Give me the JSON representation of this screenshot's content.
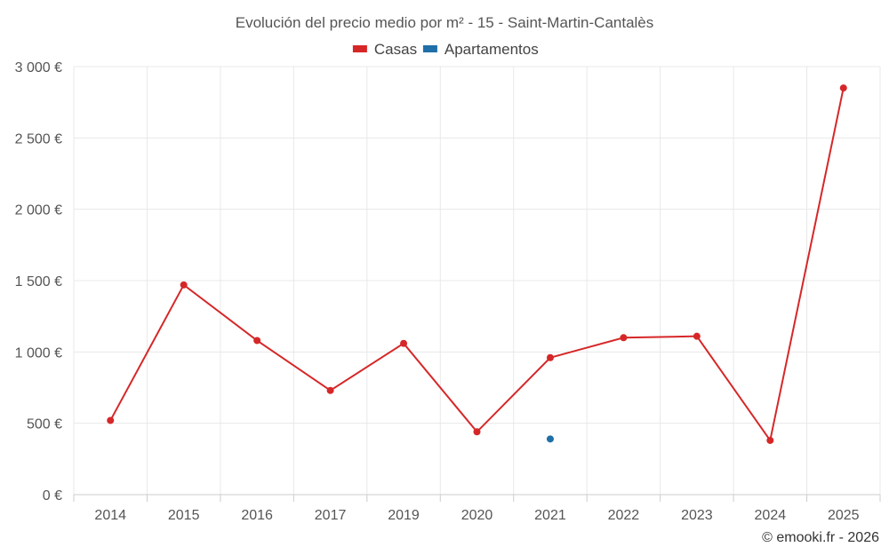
{
  "chart_data": {
    "type": "line",
    "title": "Evolución del precio medio por m² - 15 - Saint-Martin-Cantalès",
    "categories": [
      "2014",
      "2015",
      "2016",
      "2017",
      "2019",
      "2020",
      "2021",
      "2022",
      "2023",
      "2024",
      "2025"
    ],
    "series": [
      {
        "name": "Casas",
        "color": "#d62728",
        "values": [
          520,
          1470,
          1080,
          730,
          1060,
          440,
          960,
          1100,
          1110,
          380,
          2850
        ]
      },
      {
        "name": "Apartamentos",
        "color": "#1f6fa8",
        "values": [
          null,
          null,
          null,
          null,
          null,
          null,
          390,
          null,
          null,
          null,
          null
        ]
      }
    ],
    "ylim": [
      0,
      3000
    ],
    "yticks": [
      0,
      500,
      1000,
      1500,
      2000,
      2500,
      3000
    ],
    "ytick_labels": [
      "0 €",
      "500 €",
      "1 000 €",
      "1 500 €",
      "2 000 €",
      "2 500 €",
      "3 000 €"
    ],
    "grid": true,
    "legend_position": "top-center"
  },
  "credit": "© emooki.fr - 2026"
}
